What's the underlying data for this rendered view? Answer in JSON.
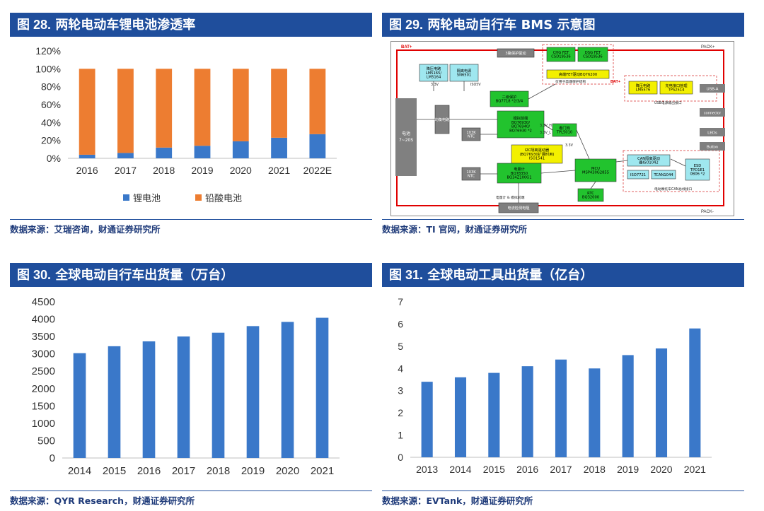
{
  "panels": {
    "p28": {
      "fig_no": "图 28.",
      "title": "两轮电动车锂电池渗透率",
      "source": "数据来源：艾瑞咨询，财通证券研究所"
    },
    "p29": {
      "fig_no": "图 29.",
      "title": "两轮电动自行车 BMS 示意图",
      "source": "数据来源：TI 官网，财通证券研究所"
    },
    "p30": {
      "fig_no": "图 30.",
      "title": "全球电动自行车出货量（万台）",
      "source": "数据来源：QYR Research，财通证券研究所"
    },
    "p31": {
      "fig_no": "图 31.",
      "title": "全球电动工具出货量（亿台）",
      "source": "数据来源：EVTank，财通证券研究所"
    }
  },
  "chart_data": [
    {
      "type": "bar",
      "stacked": true,
      "categories": [
        "2016",
        "2017",
        "2018",
        "2019",
        "2020",
        "2021",
        "2022E"
      ],
      "series": [
        {
          "name": "锂电池",
          "color": "#3a78c9",
          "values": [
            4,
            6,
            12,
            14,
            19,
            23,
            27
          ]
        },
        {
          "name": "铅酸电池",
          "color": "#ed7d31",
          "values": [
            96,
            94,
            88,
            86,
            81,
            77,
            73
          ]
        }
      ],
      "ylim": [
        0,
        120
      ],
      "yticks": [
        "0%",
        "20%",
        "40%",
        "60%",
        "80%",
        "100%",
        "120%"
      ],
      "legend": "bottom",
      "grid": false
    },
    {
      "type": "bar",
      "categories": [
        "2014",
        "2015",
        "2016",
        "2017",
        "2018",
        "2019",
        "2020",
        "2021"
      ],
      "values": [
        3020,
        3220,
        3360,
        3500,
        3610,
        3800,
        3920,
        4040
      ],
      "color": "#3a78c9",
      "ylim": [
        0,
        4500
      ],
      "yticks": [
        "0",
        "500",
        "1000",
        "1500",
        "2000",
        "2500",
        "3000",
        "3500",
        "4000",
        "4500"
      ],
      "grid": false
    },
    {
      "type": "bar",
      "categories": [
        "2013",
        "2014",
        "2015",
        "2016",
        "2017",
        "2018",
        "2019",
        "2020",
        "2021"
      ],
      "values": [
        3.4,
        3.6,
        3.8,
        4.1,
        4.4,
        4.0,
        4.6,
        4.9,
        5.8
      ],
      "color": "#3a78c9",
      "ylim": [
        0,
        7
      ],
      "yticks": [
        "0",
        "1",
        "2",
        "3",
        "4",
        "5",
        "6",
        "7"
      ],
      "grid": false
    }
  ],
  "bms": {
    "terminals": {
      "bat_plus": "BAT+",
      "pack_plus": "PACK+",
      "pack_minus": "PACK-",
      "bat_plus2": "BAT+"
    },
    "battery": "电池\n7~20S",
    "blocks": [
      {
        "id": "ldo",
        "lines": [
          "降压电路",
          "LM5165/",
          "LM5164"
        ],
        "color": "cyan"
      },
      {
        "id": "iso",
        "lines": [
          "隔离电源",
          "SN6501"
        ],
        "color": "cyan"
      },
      {
        "id": "ctrl",
        "lines": [
          "3路保护驱动"
        ],
        "color": "gray"
      },
      {
        "id": "chg",
        "lines": [
          "CHG FET",
          "CSD19536"
        ],
        "color": "green"
      },
      {
        "id": "dsg",
        "lines": [
          "DSG FET",
          "CSD19536"
        ],
        "color": "green"
      },
      {
        "id": "hsfet",
        "lines": [
          "高端FET驱动BQ76200"
        ],
        "color": "yellow"
      },
      {
        "id": "prot2",
        "lines": [
          "二级保护",
          "BQ7718 *2/3/4"
        ],
        "color": "green"
      },
      {
        "id": "afe",
        "lines": [
          "模拟前端",
          "BQ76930/",
          "BQ76940/",
          "BQ76930 *2"
        ],
        "color": "green"
      },
      {
        "id": "i2c",
        "lines": [
          "I2C隔离驱动器",
          "(BQ76930扩展时用)",
          "ISO1541"
        ],
        "color": "yellow"
      },
      {
        "id": "gauge",
        "lines": [
          "电量计",
          "BQ78350",
          "BQ34Z100G1"
        ],
        "color": "green"
      },
      {
        "id": "door",
        "lines": [
          "看门狗",
          "TPL5010"
        ],
        "color": "green"
      },
      {
        "id": "mcu",
        "lines": [
          "MCU",
          "MSP430G2855"
        ],
        "color": "green"
      },
      {
        "id": "rtc",
        "lines": [
          "RTC",
          "BQ32000"
        ],
        "color": "green"
      },
      {
        "id": "ntc1",
        "lines": [
          "103K",
          "NTC"
        ],
        "color": "gray"
      },
      {
        "id": "ntc2",
        "lines": [
          "103K",
          "NTC"
        ],
        "color": "gray"
      },
      {
        "id": "balance",
        "lines": [
          "均衡电路"
        ],
        "color": "gray"
      },
      {
        "id": "sense",
        "lines": [
          "电流检测电阻"
        ],
        "color": "gray"
      },
      {
        "id": "usbdc",
        "lines": [
          "降压电路",
          "LM5576"
        ],
        "color": "yellow"
      },
      {
        "id": "usbpm",
        "lines": [
          "充电接口管理",
          "TPS2514"
        ],
        "color": "yellow"
      },
      {
        "id": "can",
        "lines": [
          "CAN隔离驱动",
          "器ISO1042"
        ],
        "color": "cyan"
      },
      {
        "id": "iso7721",
        "lines": [
          "ISO7721"
        ],
        "color": "cyan"
      },
      {
        "id": "tcan",
        "lines": [
          "TCAN1044"
        ],
        "color": "cyan"
      },
      {
        "id": "esd",
        "lines": [
          "ESD",
          "TPD1E1",
          "0B06 *2"
        ],
        "color": "cyan"
      }
    ],
    "ports": [
      "USB-A",
      "connector",
      "LEDs",
      "Button"
    ],
    "labels": [
      "3.3V",
      "ISO5V",
      "3.3V_H",
      "3.3V_L",
      "3.3V",
      "仅用于高端保护结构",
      "USB电源输出接口",
      "电动摩托车CAN总线接口",
      "电量计 & 模拟前端"
    ]
  },
  "colors": {
    "header": "#1f4e9c",
    "bar_blue": "#3a78c9",
    "bar_orange": "#ed7d31"
  }
}
